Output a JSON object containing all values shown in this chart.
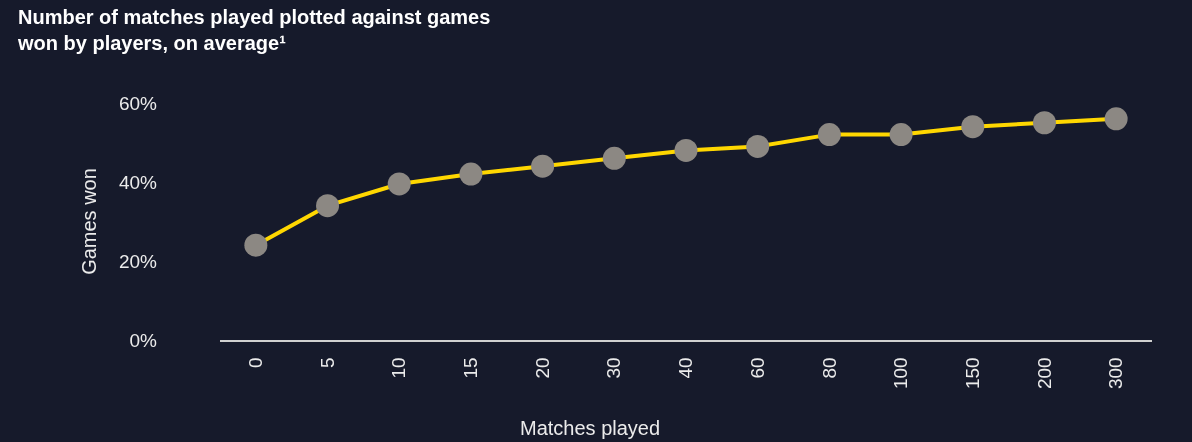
{
  "chart_data": {
    "type": "line",
    "title": "Number of matches played plotted against games won by players, on average¹",
    "xlabel": "Matches played",
    "ylabel": "Games won",
    "categories": [
      "0",
      "5",
      "10",
      "15",
      "20",
      "30",
      "40",
      "60",
      "80",
      "100",
      "150",
      "200",
      "300"
    ],
    "series": [
      {
        "color": "#ffd700",
        "colors": [
          "#8c8883",
          "#8c8883",
          "#8c8883",
          "#8c8883",
          "#8c8883",
          "#8c8883",
          "#8c8883",
          "#8c8883",
          "#8c8883",
          "#8c8883",
          "#8c8883",
          "#8c8883",
          "#8c8883"
        ],
        "values": [
          24,
          34,
          39.5,
          42,
          44,
          46,
          48,
          49,
          52,
          52,
          54,
          55,
          56
        ]
      }
    ],
    "ylim": [
      0,
      60
    ],
    "yticks": [
      {
        "value": 0,
        "label": "0%"
      },
      {
        "value": 20,
        "label": "20%"
      },
      {
        "value": 40,
        "label": "40%"
      },
      {
        "value": 60,
        "label": "60%"
      }
    ],
    "grid": false,
    "marker": "circle",
    "line_style": "solid"
  }
}
